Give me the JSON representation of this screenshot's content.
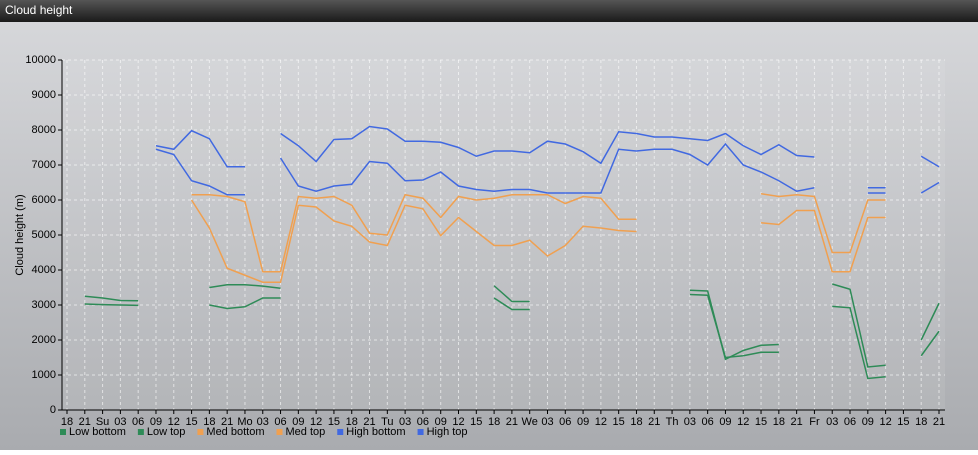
{
  "chart_data": {
    "type": "line",
    "title": "Cloud height",
    "y_label": "Cloud height (m)",
    "categories": [
      "18",
      "21",
      "Su",
      "03",
      "06",
      "09",
      "12",
      "15",
      "18",
      "21",
      "Mo",
      "03",
      "06",
      "09",
      "12",
      "15",
      "18",
      "21",
      "Tu",
      "03",
      "06",
      "09",
      "12",
      "15",
      "18",
      "21",
      "We",
      "03",
      "06",
      "09",
      "12",
      "15",
      "18",
      "21",
      "Th",
      "03",
      "06",
      "09",
      "12",
      "15",
      "18",
      "21",
      "Fr",
      "03",
      "06",
      "09",
      "12",
      "15",
      "18",
      "21"
    ],
    "ylim": [
      0,
      10000
    ],
    "yticks": [
      0,
      1000,
      2000,
      3000,
      4000,
      5000,
      6000,
      7000,
      8000,
      9000,
      10000
    ],
    "grid": true,
    "series": [
      {
        "name": "Low bottom",
        "color": "#2e8b57",
        "values": [
          null,
          3030,
          3010,
          3000,
          2990,
          null,
          null,
          null,
          3000,
          2900,
          2950,
          3200,
          3200,
          null,
          null,
          null,
          null,
          null,
          null,
          null,
          null,
          null,
          null,
          null,
          3200,
          2870,
          2870,
          null,
          null,
          null,
          null,
          null,
          null,
          null,
          null,
          3300,
          3280,
          1500,
          1550,
          1650,
          1650,
          null,
          null,
          2960,
          2920,
          900,
          950,
          null,
          1550,
          2250
        ]
      },
      {
        "name": "Low top",
        "color": "#2e8b57",
        "values": [
          null,
          3250,
          3200,
          3130,
          3120,
          null,
          null,
          null,
          3500,
          3580,
          3580,
          3540,
          3480,
          null,
          null,
          null,
          null,
          null,
          null,
          null,
          null,
          null,
          null,
          null,
          3550,
          3100,
          3100,
          null,
          null,
          null,
          null,
          null,
          null,
          null,
          null,
          3420,
          3400,
          1450,
          1700,
          1850,
          1870,
          null,
          null,
          3600,
          3450,
          1230,
          1280,
          null,
          2000,
          3050
        ]
      },
      {
        "name": "Med bottom",
        "color": "#f0a050",
        "values": [
          null,
          null,
          null,
          null,
          null,
          null,
          null,
          6000,
          5200,
          4050,
          3850,
          3650,
          3650,
          5850,
          5800,
          5400,
          5250,
          4800,
          4700,
          5850,
          5750,
          4980,
          5500,
          5100,
          4700,
          4700,
          4850,
          4400,
          4700,
          5250,
          5200,
          5130,
          5100,
          null,
          null,
          null,
          null,
          null,
          null,
          5350,
          5300,
          5700,
          5700,
          3950,
          3950,
          5500,
          5500,
          null,
          null,
          null
        ]
      },
      {
        "name": "Med top",
        "color": "#f0a050",
        "values": [
          null,
          null,
          null,
          null,
          null,
          null,
          null,
          6150,
          6150,
          6100,
          5950,
          3950,
          3950,
          6100,
          6050,
          6100,
          5850,
          5050,
          5000,
          6150,
          6050,
          5500,
          6100,
          6000,
          6050,
          6150,
          6150,
          6150,
          5900,
          6100,
          6050,
          5450,
          5450,
          null,
          null,
          null,
          null,
          null,
          null,
          6180,
          6100,
          6150,
          6100,
          4500,
          4500,
          6000,
          6000,
          null,
          null,
          null
        ]
      },
      {
        "name": "High bottom",
        "color": "#4169e1",
        "values": [
          null,
          null,
          null,
          null,
          null,
          7450,
          7300,
          6550,
          6400,
          6150,
          6150,
          null,
          7200,
          6400,
          6250,
          6400,
          6450,
          7100,
          7050,
          6550,
          6570,
          6800,
          6400,
          6300,
          6250,
          6300,
          6300,
          6200,
          6200,
          6200,
          6200,
          7450,
          7400,
          7450,
          7450,
          7300,
          7000,
          7600,
          7000,
          6800,
          6550,
          6250,
          6350,
          null,
          null,
          6200,
          6200,
          null,
          6200,
          6500
        ]
      },
      {
        "name": "High top",
        "color": "#4169e1",
        "values": [
          null,
          null,
          null,
          null,
          null,
          7550,
          7450,
          7980,
          7750,
          6950,
          6950,
          null,
          7900,
          7550,
          7100,
          7730,
          7750,
          8100,
          8030,
          7680,
          7680,
          7650,
          7500,
          7250,
          7400,
          7400,
          7350,
          7680,
          7600,
          7380,
          7050,
          7950,
          7900,
          7800,
          7800,
          7750,
          7700,
          7900,
          7550,
          7300,
          7580,
          7270,
          7230,
          null,
          null,
          6350,
          6350,
          null,
          7250,
          6950
        ]
      }
    ]
  }
}
